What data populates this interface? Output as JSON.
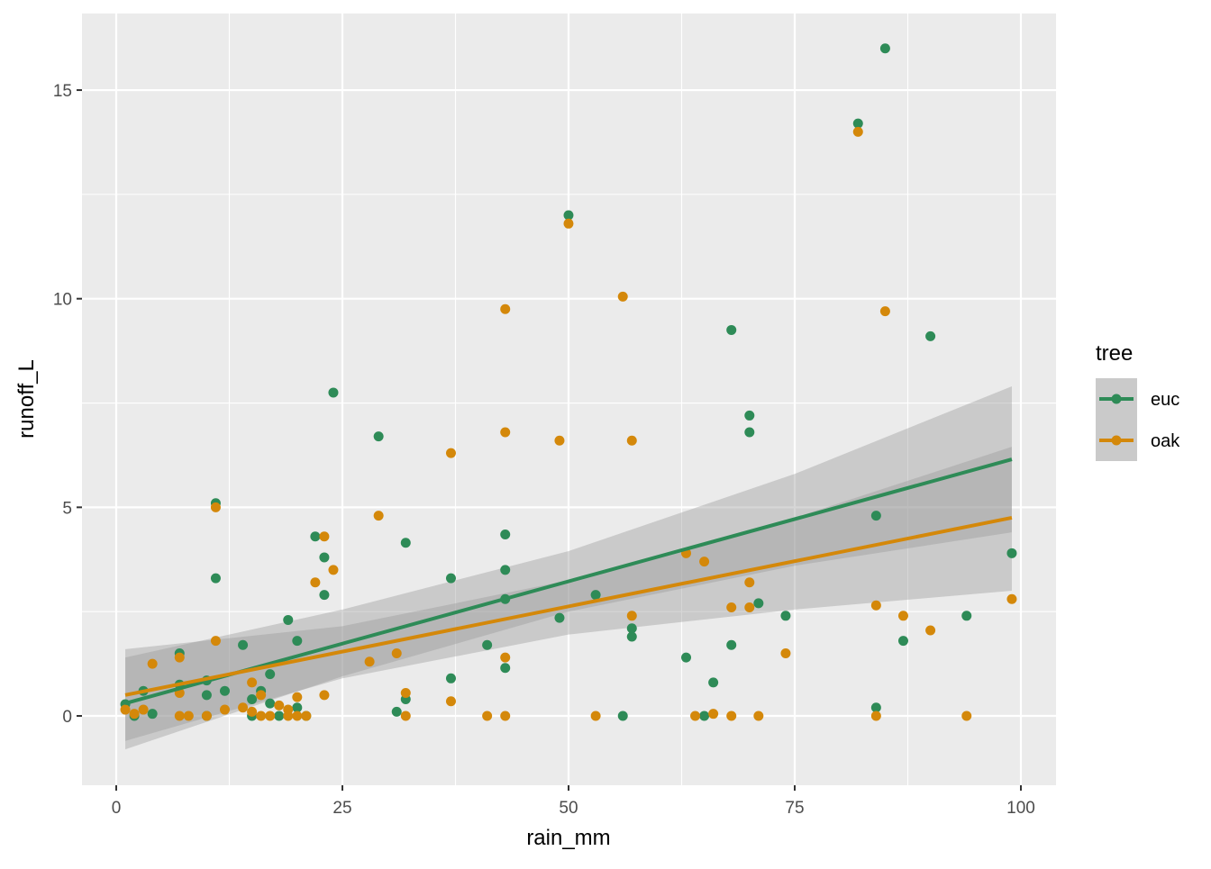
{
  "chart_data": {
    "type": "scatter",
    "title": "",
    "xlabel": "rain_mm",
    "ylabel": "runoff_L",
    "xlim": [
      -7.5,
      104.5
    ],
    "ylim": [
      -1.65,
      16.8
    ],
    "xticks": [
      0,
      25,
      50,
      75,
      100
    ],
    "xtick_labels": [
      "0",
      "25",
      "50",
      "75",
      "100"
    ],
    "yticks": [
      0,
      5,
      10,
      15
    ],
    "ytick_labels": [
      "0",
      "5",
      "10",
      "15"
    ],
    "grid": true,
    "legend": {
      "title": "tree",
      "placement": "right",
      "entries": [
        "euc",
        "oak"
      ]
    },
    "series": [
      {
        "name": "euc",
        "color": "#2e8b57",
        "points": [
          [
            1,
            0.28
          ],
          [
            2,
            0
          ],
          [
            3,
            0.6
          ],
          [
            4,
            0.05
          ],
          [
            7,
            1.5
          ],
          [
            7,
            0.75
          ],
          [
            10,
            0.85
          ],
          [
            10,
            0.5
          ],
          [
            10,
            0
          ],
          [
            11,
            5.1
          ],
          [
            11,
            3.3
          ],
          [
            12,
            0.6
          ],
          [
            14,
            1.7
          ],
          [
            15,
            0.4
          ],
          [
            15,
            0
          ],
          [
            16,
            0.6
          ],
          [
            17,
            1.0
          ],
          [
            17,
            0.3
          ],
          [
            18,
            0
          ],
          [
            19,
            2.3
          ],
          [
            20,
            1.8
          ],
          [
            20,
            0.2
          ],
          [
            21,
            0
          ],
          [
            22,
            4.3
          ],
          [
            23,
            3.8
          ],
          [
            23,
            2.9
          ],
          [
            24,
            7.75
          ],
          [
            29,
            6.7
          ],
          [
            31,
            0.1
          ],
          [
            32,
            4.15
          ],
          [
            32,
            0.4
          ],
          [
            37,
            3.3
          ],
          [
            37,
            0.9
          ],
          [
            41,
            1.7
          ],
          [
            43,
            4.35
          ],
          [
            43,
            3.5
          ],
          [
            43,
            2.8
          ],
          [
            43,
            1.15
          ],
          [
            49,
            2.35
          ],
          [
            50,
            12.0
          ],
          [
            53,
            2.9
          ],
          [
            56,
            0
          ],
          [
            57,
            2.1
          ],
          [
            57,
            1.9
          ],
          [
            63,
            1.4
          ],
          [
            65,
            0
          ],
          [
            66,
            0.8
          ],
          [
            68,
            9.25
          ],
          [
            68,
            1.7
          ],
          [
            70,
            7.2
          ],
          [
            70,
            6.8
          ],
          [
            71,
            2.7
          ],
          [
            74,
            2.4
          ],
          [
            82,
            14.2
          ],
          [
            84,
            4.8
          ],
          [
            84,
            0.2
          ],
          [
            85,
            16.0
          ],
          [
            87,
            1.8
          ],
          [
            90,
            9.1
          ],
          [
            94,
            2.4
          ],
          [
            99,
            3.9
          ]
        ],
        "fit": {
          "x": [
            1,
            99
          ],
          "y": [
            0.3,
            6.15
          ]
        },
        "ribbon": {
          "x": [
            1,
            25,
            50,
            75,
            99
          ],
          "lower": [
            -0.8,
            0.95,
            2.5,
            3.6,
            4.4
          ],
          "upper": [
            1.4,
            2.55,
            3.95,
            5.8,
            7.9
          ]
        }
      },
      {
        "name": "oak",
        "color": "#d4880a",
        "points": [
          [
            1,
            0.15
          ],
          [
            2,
            0.05
          ],
          [
            3,
            0.15
          ],
          [
            4,
            1.25
          ],
          [
            7,
            1.4
          ],
          [
            7,
            0.55
          ],
          [
            7,
            0
          ],
          [
            8,
            0
          ],
          [
            10,
            0
          ],
          [
            11,
            5.0
          ],
          [
            11,
            1.8
          ],
          [
            12,
            0.15
          ],
          [
            14,
            0.2
          ],
          [
            15,
            0.8
          ],
          [
            15,
            0.1
          ],
          [
            16,
            0.5
          ],
          [
            16,
            0
          ],
          [
            17,
            0
          ],
          [
            18,
            0.25
          ],
          [
            19,
            0.15
          ],
          [
            19,
            0
          ],
          [
            20,
            0.45
          ],
          [
            20,
            0
          ],
          [
            21,
            0
          ],
          [
            22,
            3.2
          ],
          [
            23,
            4.3
          ],
          [
            23,
            0.5
          ],
          [
            24,
            3.5
          ],
          [
            28,
            1.3
          ],
          [
            29,
            4.8
          ],
          [
            31,
            1.5
          ],
          [
            32,
            0.55
          ],
          [
            32,
            0
          ],
          [
            37,
            6.3
          ],
          [
            37,
            0.35
          ],
          [
            41,
            0
          ],
          [
            43,
            9.75
          ],
          [
            43,
            6.8
          ],
          [
            43,
            1.4
          ],
          [
            43,
            0
          ],
          [
            49,
            6.6
          ],
          [
            50,
            11.8
          ],
          [
            53,
            0
          ],
          [
            56,
            10.05
          ],
          [
            57,
            6.6
          ],
          [
            57,
            2.4
          ],
          [
            63,
            3.9
          ],
          [
            64,
            0
          ],
          [
            65,
            3.7
          ],
          [
            66,
            0.05
          ],
          [
            68,
            2.6
          ],
          [
            68,
            0
          ],
          [
            70,
            3.2
          ],
          [
            70,
            2.6
          ],
          [
            71,
            0
          ],
          [
            74,
            1.5
          ],
          [
            82,
            14.0
          ],
          [
            84,
            2.65
          ],
          [
            84,
            0
          ],
          [
            85,
            9.7
          ],
          [
            87,
            2.4
          ],
          [
            90,
            2.05
          ],
          [
            94,
            0
          ],
          [
            99,
            2.8
          ]
        ],
        "fit": {
          "x": [
            1,
            99
          ],
          "y": [
            0.5,
            4.75
          ]
        },
        "ribbon": {
          "x": [
            1,
            25,
            50,
            75,
            99
          ],
          "lower": [
            -0.6,
            0.9,
            1.95,
            2.55,
            3.0
          ],
          "upper": [
            1.6,
            2.15,
            3.25,
            4.75,
            6.45
          ]
        }
      }
    ]
  }
}
